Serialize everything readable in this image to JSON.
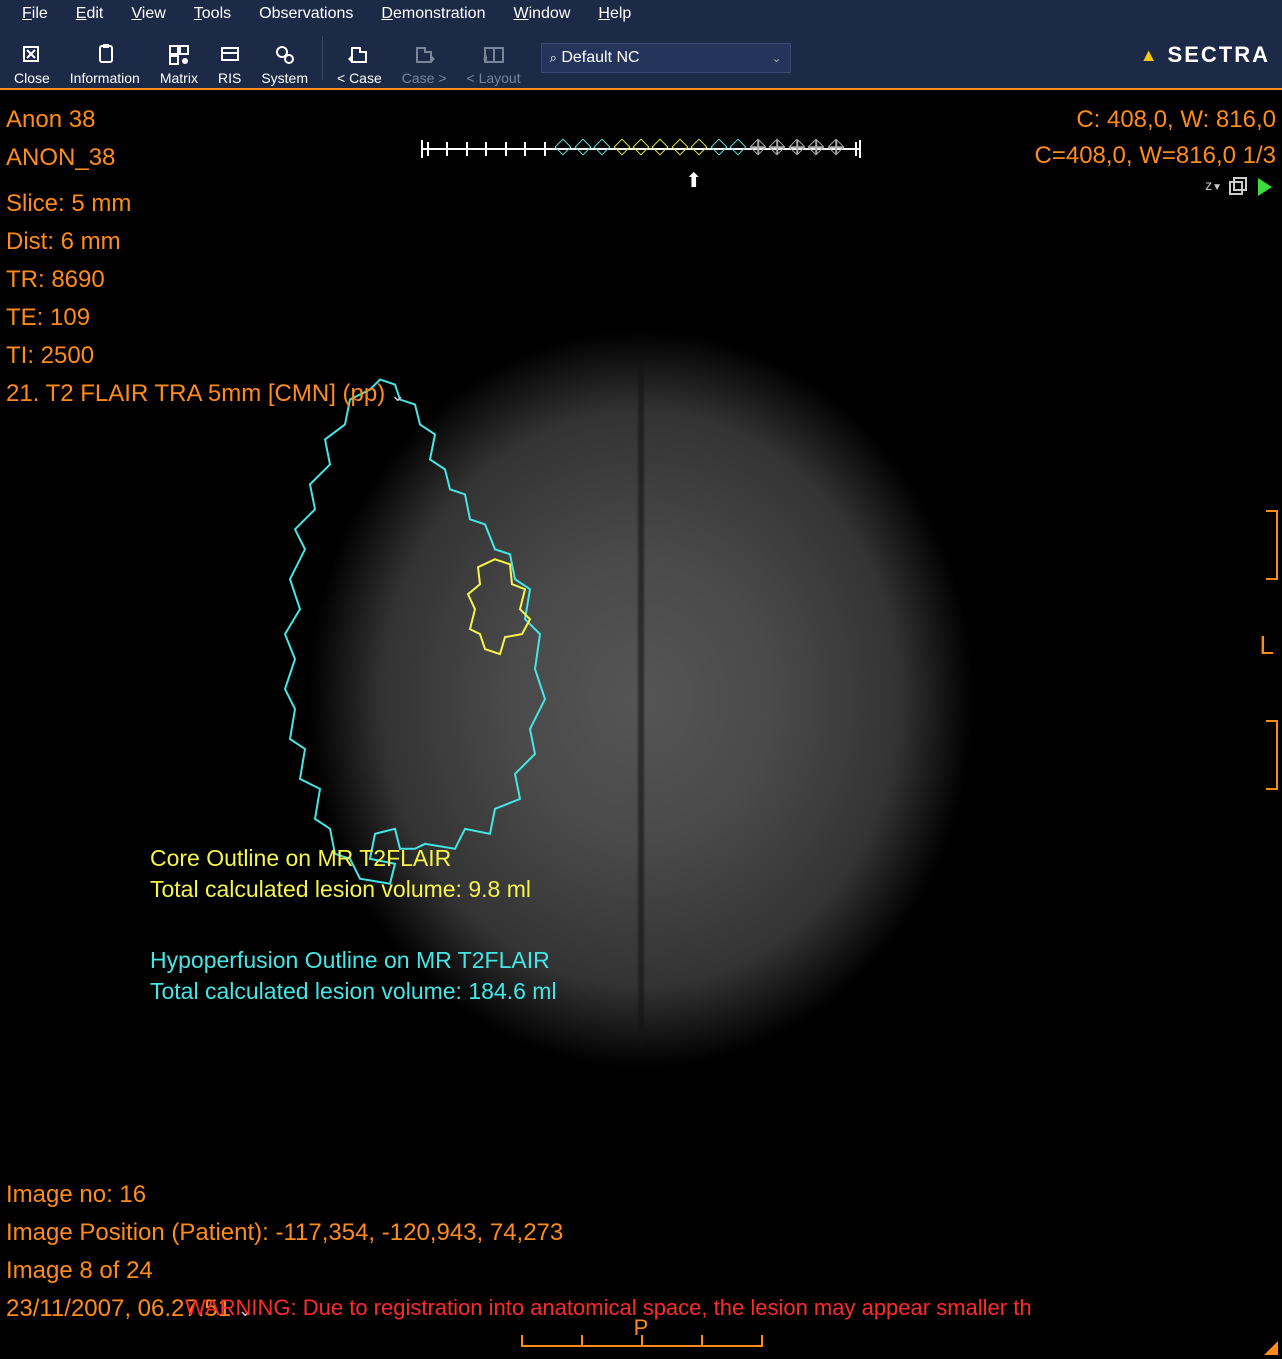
{
  "colors": {
    "menubar_bg": "#1c2a47",
    "accent_orange": "#ff8c1a",
    "overlay_yellow": "#f5f54a",
    "overlay_cyan": "#45e6e6",
    "warning_red": "#ff2a2a",
    "diamond_cyan": "#66e0e0",
    "diamond_yellow": "#e8e84a"
  },
  "menu": {
    "items": [
      "File",
      "Edit",
      "View",
      "Tools",
      "Observations",
      "Demonstration",
      "Window",
      "Help"
    ],
    "underline_first": [
      true,
      true,
      true,
      true,
      false,
      true,
      true,
      true
    ]
  },
  "toolbar": {
    "buttons": [
      {
        "name": "close-button",
        "label": "Close",
        "disabled": false
      },
      {
        "name": "information-button",
        "label": "Information",
        "disabled": false
      },
      {
        "name": "matrix-button",
        "label": "Matrix",
        "disabled": false
      },
      {
        "name": "ris-button",
        "label": "RIS",
        "disabled": false
      },
      {
        "name": "system-button",
        "label": "System",
        "disabled": false
      },
      {
        "name": "prev-case-button",
        "label": "< Case",
        "disabled": false,
        "sep_before": true
      },
      {
        "name": "next-case-button",
        "label": "Case >",
        "disabled": true
      },
      {
        "name": "prev-layout-button",
        "label": "< Layout",
        "disabled": true
      }
    ],
    "combo_label": "Default NC"
  },
  "brand": "SECTRA",
  "overlay": {
    "top_left": [
      "Anon 38",
      "ANON_38",
      "Slice: 5 mm",
      "Dist: 6 mm",
      "TR: 8690",
      "TE: 109",
      "TI: 2500",
      "21. T2 FLAIR TRA 5mm [CMN] (pp)"
    ],
    "top_right_1": "C: 408,0, W: 816,0",
    "top_right_2": "C=408,0, W=816,0 1/3",
    "orientation_right": "L",
    "orientation_bottom": "P"
  },
  "timeline": {
    "plain_ticks_left": 7,
    "cyan_diamonds_a": 3,
    "yellow_diamonds": 5,
    "cyan_diamonds_b": 2,
    "grey_plus_diamonds": 5,
    "plain_ticks_right": 1,
    "arrow_fraction": 0.62
  },
  "lesion": {
    "core": {
      "title": "Core Outline on MR T2FLAIR",
      "volume_label": "Total calculated lesion volume: 9.8 ml"
    },
    "hypo": {
      "title": "Hypoperfusion Outline on MR T2FLAIR",
      "volume_label": "Total calculated lesion volume: 184.6 ml"
    }
  },
  "bottom": {
    "image_no": "Image no: 16",
    "position": "Image Position (Patient): -117,354, -120,943, 74,273",
    "counter": "Image 8 of 24",
    "datetime": "23/11/2007, 06.27.51",
    "warning": "WARNING: Due to registration into anatomical space, the lesion may appear smaller th"
  }
}
